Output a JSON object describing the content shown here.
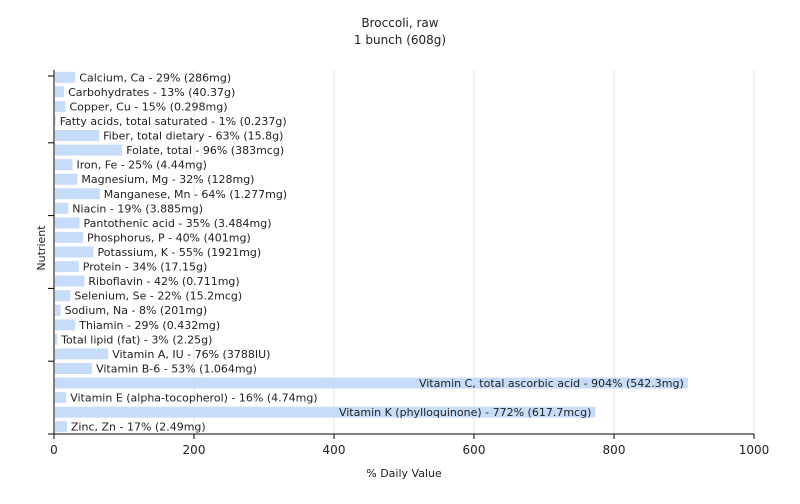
{
  "chart_data": {
    "type": "bar",
    "orientation": "horizontal",
    "title": "Broccoli, raw",
    "subtitle": "1 bunch (608g)",
    "xlabel": "% Daily Value",
    "ylabel": "Nutrient",
    "xlim": [
      0,
      1000
    ],
    "xticks": [
      "0",
      "200",
      "400",
      "600",
      "800",
      "1000"
    ],
    "grid": true,
    "colors": {
      "bar": "#c6dcf8",
      "grid": "#e6e6e6",
      "axis": "#000000"
    },
    "categories": [
      "Calcium, Ca",
      "Carbohydrates",
      "Copper, Cu",
      "Fatty acids, total saturated",
      "Fiber, total dietary",
      "Folate, total",
      "Iron, Fe",
      "Magnesium, Mg",
      "Manganese, Mn",
      "Niacin",
      "Pantothenic acid",
      "Phosphorus, P",
      "Potassium, K",
      "Protein",
      "Riboflavin",
      "Selenium, Se",
      "Sodium, Na",
      "Thiamin",
      "Total lipid (fat)",
      "Vitamin A, IU",
      "Vitamin B-6",
      "Vitamin C, total ascorbic acid",
      "Vitamin E (alpha-tocopherol)",
      "Vitamin K (phylloquinone)",
      "Zinc, Zn"
    ],
    "values": [
      29,
      13,
      15,
      1,
      63,
      96,
      25,
      32,
      64,
      19,
      35,
      40,
      55,
      34,
      42,
      22,
      8,
      29,
      3,
      76,
      53,
      904,
      16,
      772,
      17
    ],
    "labels": [
      "Calcium, Ca - 29% (286mg)",
      "Carbohydrates - 13% (40.37g)",
      "Copper, Cu - 15% (0.298mg)",
      "Fatty acids, total saturated - 1% (0.237g)",
      "Fiber, total dietary - 63% (15.8g)",
      "Folate, total - 96% (383mcg)",
      "Iron, Fe - 25% (4.44mg)",
      "Magnesium, Mg - 32% (128mg)",
      "Manganese, Mn - 64% (1.277mg)",
      "Niacin - 19% (3.885mg)",
      "Pantothenic acid - 35% (3.484mg)",
      "Phosphorus, P - 40% (401mg)",
      "Potassium, K - 55% (1921mg)",
      "Protein - 34% (17.15g)",
      "Riboflavin - 42% (0.711mg)",
      "Selenium, Se - 22% (15.2mcg)",
      "Sodium, Na - 8% (201mg)",
      "Thiamin - 29% (0.432mg)",
      "Total lipid (fat) - 3% (2.25g)",
      "Vitamin A, IU - 76% (3788IU)",
      "Vitamin B-6 - 53% (1.064mg)",
      "Vitamin C, total ascorbic acid - 904% (542.3mg)",
      "Vitamin E (alpha-tocopherol) - 16% (4.74mg)",
      "Vitamin K (phylloquinone) - 772% (617.7mcg)",
      "Zinc, Zn - 17% (2.49mg)"
    ]
  }
}
